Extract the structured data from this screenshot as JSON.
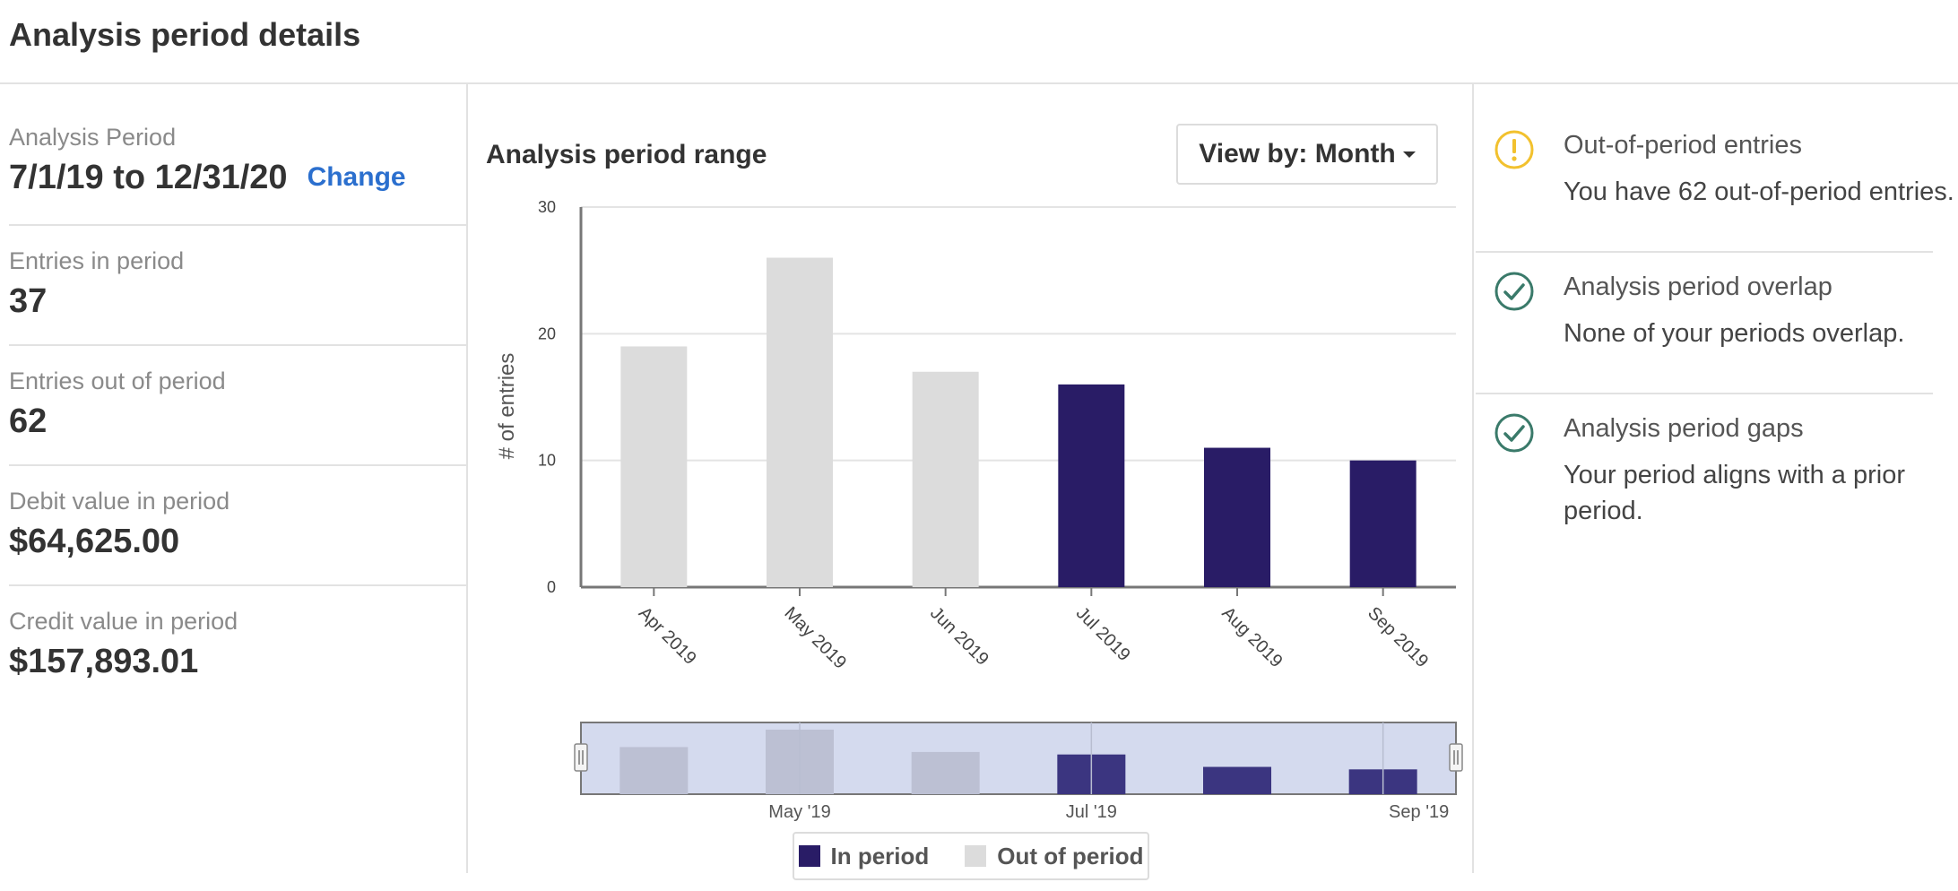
{
  "header": {
    "title": "Analysis period details"
  },
  "stats": {
    "period_label": "Analysis Period",
    "period_value": "7/1/19 to 12/31/20",
    "change_label": "Change",
    "entries_in_label": "Entries in period",
    "entries_in_value": "37",
    "entries_out_label": "Entries out of period",
    "entries_out_value": "62",
    "debit_label": "Debit value in period",
    "debit_value": "$64,625.00",
    "credit_label": "Credit value in period",
    "credit_value": "$157,893.01"
  },
  "chart_panel": {
    "title": "Analysis period range",
    "view_by_label": "View by: Month",
    "legend_in": "In period",
    "legend_out": "Out of period"
  },
  "colors": {
    "in_period": "#291c66",
    "out_period": "#dcdcdc",
    "warning": "#f2c12e",
    "ok": "#3a7a6a",
    "link": "#2b6fce"
  },
  "chart_data": {
    "type": "bar",
    "categories": [
      "Apr 2019",
      "May 2019",
      "Jun 2019",
      "Jul 2019",
      "Aug 2019",
      "Sep 2019"
    ],
    "values": [
      19,
      26,
      17,
      16,
      11,
      10
    ],
    "in_period": [
      false,
      false,
      false,
      true,
      true,
      true
    ],
    "ylabel": "# of entries",
    "ylim": [
      0,
      30
    ],
    "yticks": [
      0,
      10,
      20,
      30
    ],
    "grid": true,
    "navigator_ticks": [
      "May '19",
      "Jul '19",
      "Sep '19"
    ]
  },
  "checks": [
    {
      "icon": "warning-icon",
      "title": "Out-of-period entries",
      "desc": "You have 62 out-of-period entries."
    },
    {
      "icon": "check-circle-icon",
      "title": "Analysis period overlap",
      "desc": "None of your periods overlap."
    },
    {
      "icon": "check-circle-icon",
      "title": "Analysis period gaps",
      "desc": "Your period aligns with a prior period."
    }
  ]
}
